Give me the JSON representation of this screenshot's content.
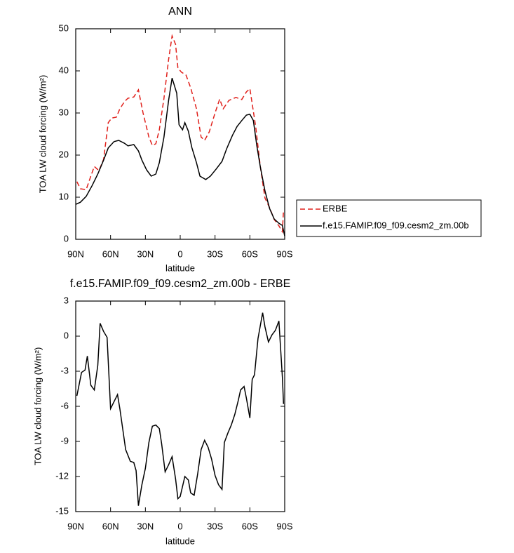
{
  "chart_data": [
    {
      "type": "line",
      "title": "ANN",
      "xlabel": "latitude",
      "ylabel": "TOA LW cloud forcing (W/m²)",
      "xlim": [
        90,
        -90
      ],
      "xticks": [
        {
          "value": 90,
          "label": "90N"
        },
        {
          "value": 60,
          "label": "60N"
        },
        {
          "value": 30,
          "label": "30N"
        },
        0,
        {
          "value": -30,
          "label": "30S"
        },
        {
          "value": -60,
          "label": "60S"
        },
        {
          "value": -90,
          "label": "90S"
        }
      ],
      "ylim": [
        0,
        50
      ],
      "yticks": [
        0,
        10,
        20,
        30,
        40,
        50
      ],
      "legend": "right",
      "series": [
        {
          "name": "ERBE",
          "color": "#e0201b",
          "linestyle": "dashed",
          "x": [
            89,
            86,
            81,
            77,
            74,
            70,
            66,
            62,
            59,
            55,
            52,
            48,
            45,
            40,
            36,
            32,
            27,
            24,
            21,
            18,
            14,
            10,
            7,
            4,
            2,
            -1,
            -5,
            -9,
            -14,
            -18,
            -21,
            -25,
            -30,
            -34,
            -37,
            -42,
            -48,
            -53,
            -57,
            -60,
            -65,
            -69,
            -73,
            -77,
            -81,
            -85,
            -88,
            -89
          ],
          "values": [
            13.7,
            12,
            11.8,
            15,
            17.3,
            16.3,
            19,
            27.7,
            28.8,
            29,
            31,
            32.7,
            33.5,
            33.8,
            35.5,
            30,
            24.3,
            22.3,
            22.7,
            26,
            33.5,
            42.7,
            48.3,
            46.3,
            40.7,
            39.7,
            39,
            36,
            31,
            24.3,
            23.5,
            25.5,
            30,
            33.3,
            31,
            33,
            33.7,
            33.2,
            35,
            35.8,
            26.8,
            17.3,
            9.8,
            7.5,
            4.7,
            3.2,
            1.8,
            7
          ]
        },
        {
          "name": "f.e15.FAMIP.f09_f09.cesm2_zm.00b",
          "color": "#000000",
          "linestyle": "solid",
          "x": [
            90,
            86,
            81,
            76,
            71,
            66,
            62,
            57,
            53,
            48,
            45,
            40,
            36,
            33,
            29,
            25,
            21,
            18,
            14,
            10,
            7,
            3,
            1,
            -2,
            -4,
            -7,
            -10,
            -14,
            -17,
            -22,
            -26,
            -31,
            -36,
            -40,
            -45,
            -49,
            -53,
            -57,
            -60,
            -63,
            -66,
            -69,
            -73,
            -77,
            -81,
            -85,
            -88,
            -90
          ],
          "values": [
            8.3,
            8.8,
            10.2,
            12.7,
            15.5,
            18.8,
            21.7,
            23.2,
            23.5,
            22.8,
            22.2,
            22.5,
            21,
            18.8,
            16.5,
            15,
            15.5,
            18.2,
            24.3,
            33,
            38.3,
            34.7,
            27.2,
            26,
            27.7,
            25.7,
            21.8,
            18.2,
            15,
            14.2,
            15,
            16.7,
            18.5,
            21.5,
            24.7,
            26.8,
            28.2,
            29.5,
            29.7,
            28.2,
            22.2,
            17.2,
            11.5,
            7.3,
            4.8,
            3.8,
            3.3,
            0.8
          ]
        }
      ]
    },
    {
      "type": "line",
      "title": "f.e15.FAMIP.f09_f09.cesm2_zm.00b - ERBE",
      "xlabel": "latitude",
      "ylabel": "TOA LW cloud forcing (W/m²)",
      "xlim": [
        90,
        -90
      ],
      "xticks": [
        {
          "value": 90,
          "label": "90N"
        },
        {
          "value": 60,
          "label": "60N"
        },
        {
          "value": 30,
          "label": "30N"
        },
        0,
        {
          "value": -30,
          "label": "30S"
        },
        {
          "value": -60,
          "label": "60S"
        },
        {
          "value": -90,
          "label": "90S"
        }
      ],
      "ylim": [
        -15,
        3
      ],
      "yticks": [
        -15,
        -12,
        -9,
        -6,
        -3,
        0,
        3
      ],
      "series": [
        {
          "color": "#000000",
          "linestyle": "solid",
          "x": [
            89,
            85,
            82,
            80,
            77,
            74,
            71,
            69,
            66,
            63,
            60,
            57,
            54,
            52,
            49,
            47,
            43,
            40,
            38,
            36,
            33,
            30,
            27,
            24,
            21,
            18,
            16,
            13,
            10,
            7,
            4,
            2,
            0,
            -4,
            -7,
            -9,
            -12,
            -15,
            -18,
            -21,
            -24,
            -27,
            -30,
            -33,
            -36,
            -38,
            -41,
            -44,
            -47,
            -50,
            -52,
            -55,
            -57,
            -60,
            -62,
            -64,
            -67,
            -71,
            -73,
            -76,
            -79,
            -82,
            -85,
            -88,
            -89
          ],
          "values": [
            -5.1,
            -3.1,
            -2.9,
            -1.7,
            -4.2,
            -4.6,
            -2.5,
            1.1,
            0.4,
            -0.1,
            -6.2,
            -5.6,
            -5,
            -6.2,
            -8.3,
            -9.7,
            -10.7,
            -10.8,
            -11.5,
            -14.5,
            -12.7,
            -11.3,
            -9.1,
            -7.7,
            -7.6,
            -7.9,
            -9.2,
            -11.6,
            -11,
            -10.3,
            -12.2,
            -13.9,
            -13.7,
            -12,
            -12.3,
            -13.4,
            -13.6,
            -11.8,
            -9.7,
            -8.9,
            -9.5,
            -10.5,
            -11.9,
            -12.7,
            -13.1,
            -9.1,
            -8.3,
            -7.6,
            -6.7,
            -5.5,
            -4.6,
            -4.3,
            -5.3,
            -7,
            -3.7,
            -3.3,
            -0.2,
            2,
            0.8,
            -0.5,
            0.1,
            0.5,
            1.3,
            -3.5,
            -5.8
          ]
        }
      ]
    }
  ]
}
